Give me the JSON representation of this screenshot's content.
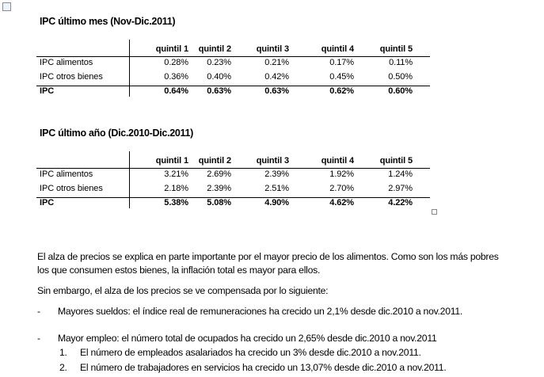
{
  "tables": [
    {
      "title": "IPC último mes (Nov-Dic.2011)",
      "columns": [
        "quintil 1",
        "quintil 2",
        "quintil 3",
        "quintil 4",
        "quintil 5"
      ],
      "rows": [
        {
          "label": "IPC alimentos",
          "values": [
            "0.28%",
            "0.23%",
            "0.21%",
            "0.17%",
            "0.11%"
          ]
        },
        {
          "label": "IPC otros bienes",
          "values": [
            "0.36%",
            "0.40%",
            "0.42%",
            "0.45%",
            "0.50%"
          ]
        },
        {
          "label": "IPC",
          "values": [
            "0.64%",
            "0.63%",
            "0.63%",
            "0.62%",
            "0.60%"
          ]
        }
      ]
    },
    {
      "title": "IPC último año (Dic.2010-Dic.2011)",
      "columns": [
        "quintil 1",
        "quintil 2",
        "quintil 3",
        "quintil 4",
        "quintil 5"
      ],
      "rows": [
        {
          "label": "IPC alimentos",
          "values": [
            "3.21%",
            "2.69%",
            "2.39%",
            "1.92%",
            "1.24%"
          ]
        },
        {
          "label": "IPC otros bienes",
          "values": [
            "2.18%",
            "2.39%",
            "2.51%",
            "2.70%",
            "2.97%"
          ]
        },
        {
          "label": "IPC",
          "values": [
            "5.38%",
            "5.08%",
            "4.90%",
            "4.62%",
            "4.22%"
          ]
        }
      ]
    }
  ],
  "paragraphs": [
    "El alza de precios se explica en parte importante por el mayor precio de los alimentos. Como son los más pobres los que consumen estos bienes, la inflación total es mayor para ellos.",
    "Sin embargo, el alza de los precios se ve compensada por lo siguiente:"
  ],
  "list": [
    {
      "marker": "-",
      "text": "Mayores sueldos: el índice real de remuneraciones ha crecido un 2,1% desde dic.2010 a nov.2011."
    },
    {
      "marker": "-",
      "text": "Mayor empleo: el número total de ocupados ha crecido un 2,65% desde dic.2010  a nov.2011",
      "subitems": [
        {
          "marker": "1.",
          "text": "El número de empleados asalariados ha crecido un 3% desde dic.2010 a nov.2011."
        },
        {
          "marker": "2.",
          "text": "El número de trabajadores en servicios ha crecido un 13,07% desde dic.2010 a nov.2011."
        }
      ]
    }
  ]
}
